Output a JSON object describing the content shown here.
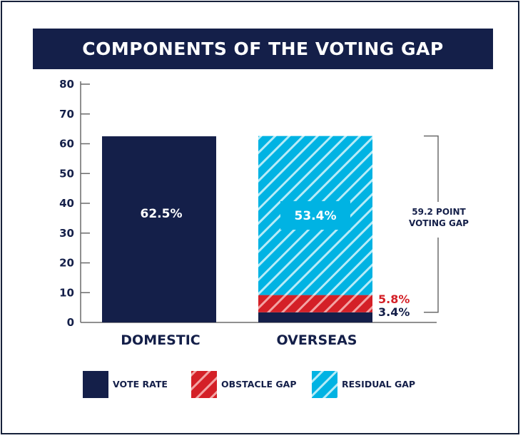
{
  "chart_data": {
    "type": "bar",
    "stacked": true,
    "title": "COMPONENTS OF THE VOTING GAP",
    "xlabel": "",
    "ylabel": "",
    "ylim": [
      0,
      80
    ],
    "yticks": [
      0,
      10,
      20,
      30,
      40,
      50,
      60,
      70,
      80
    ],
    "ytick_labels": [
      "0",
      "10",
      "20",
      "30",
      "40",
      "50",
      "60",
      "70",
      "80"
    ],
    "grid": false,
    "categories": [
      "DOMESTIC",
      "OVERSEAS"
    ],
    "series": [
      {
        "name": "VOTE RATE",
        "values": [
          62.5,
          3.4
        ],
        "color": "#141f49",
        "pattern": "solid"
      },
      {
        "name": "OBSTACLE GAP",
        "values": [
          0,
          5.8
        ],
        "color": "#d42027",
        "pattern": "hatched"
      },
      {
        "name": "RESIDUAL GAP",
        "values": [
          0,
          53.4
        ],
        "color": "#00b3e3",
        "pattern": "hatched"
      }
    ],
    "data_labels": {
      "domestic_vote_rate": "62.5%",
      "overseas_residual_gap": "53.4%",
      "overseas_obstacle_gap": "5.8%",
      "overseas_vote_rate": "3.4%"
    },
    "annotation": {
      "line1": "59.2 POINT",
      "line2": "VOTING GAP",
      "range": [
        3.4,
        62.6
      ]
    },
    "legend": {
      "placement": "bottom",
      "items": [
        "VOTE RATE",
        "OBSTACLE GAP",
        "RESIDUAL GAP"
      ]
    },
    "colors": {
      "navy": "#141f49",
      "red": "#d42027",
      "cyan": "#00b3e3",
      "axis": "#6b6b6b"
    }
  }
}
